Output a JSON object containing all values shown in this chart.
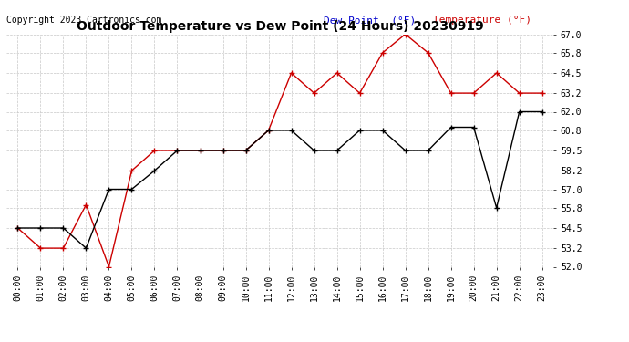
{
  "title": "Outdoor Temperature vs Dew Point (24 Hours) 20230919",
  "copyright_text": "Copyright 2023 Cartronics.com",
  "legend_dew": "Dew Point  (°F)",
  "legend_temp": "Temperature (°F)",
  "x_labels": [
    "00:00",
    "01:00",
    "02:00",
    "03:00",
    "04:00",
    "05:00",
    "06:00",
    "07:00",
    "08:00",
    "09:00",
    "10:00",
    "11:00",
    "12:00",
    "13:00",
    "14:00",
    "15:00",
    "16:00",
    "17:00",
    "18:00",
    "19:00",
    "20:00",
    "21:00",
    "22:00",
    "23:00"
  ],
  "temperature": [
    54.5,
    53.2,
    53.2,
    56.0,
    52.0,
    58.2,
    59.5,
    59.5,
    59.5,
    59.5,
    59.5,
    60.8,
    64.5,
    63.2,
    64.5,
    63.2,
    65.8,
    67.0,
    65.8,
    63.2,
    63.2,
    64.5,
    63.2,
    63.2
  ],
  "dew_point": [
    54.5,
    54.5,
    54.5,
    53.2,
    57.0,
    57.0,
    58.2,
    59.5,
    59.5,
    59.5,
    59.5,
    60.8,
    60.8,
    59.5,
    59.5,
    60.8,
    60.8,
    59.5,
    59.5,
    61.0,
    61.0,
    55.8,
    62.0,
    62.0
  ],
  "ylim": [
    52.0,
    67.0
  ],
  "yticks": [
    52.0,
    53.2,
    54.5,
    55.8,
    57.0,
    58.2,
    59.5,
    60.8,
    62.0,
    63.2,
    64.5,
    65.8,
    67.0
  ],
  "temp_color": "#cc0000",
  "dew_color": "#000000",
  "legend_dew_color": "#0000cc",
  "legend_temp_color": "#cc0000",
  "grid_color": "#c8c8c8",
  "bg_color": "#ffffff",
  "title_fontsize": 10,
  "tick_fontsize": 7,
  "copyright_fontsize": 7
}
